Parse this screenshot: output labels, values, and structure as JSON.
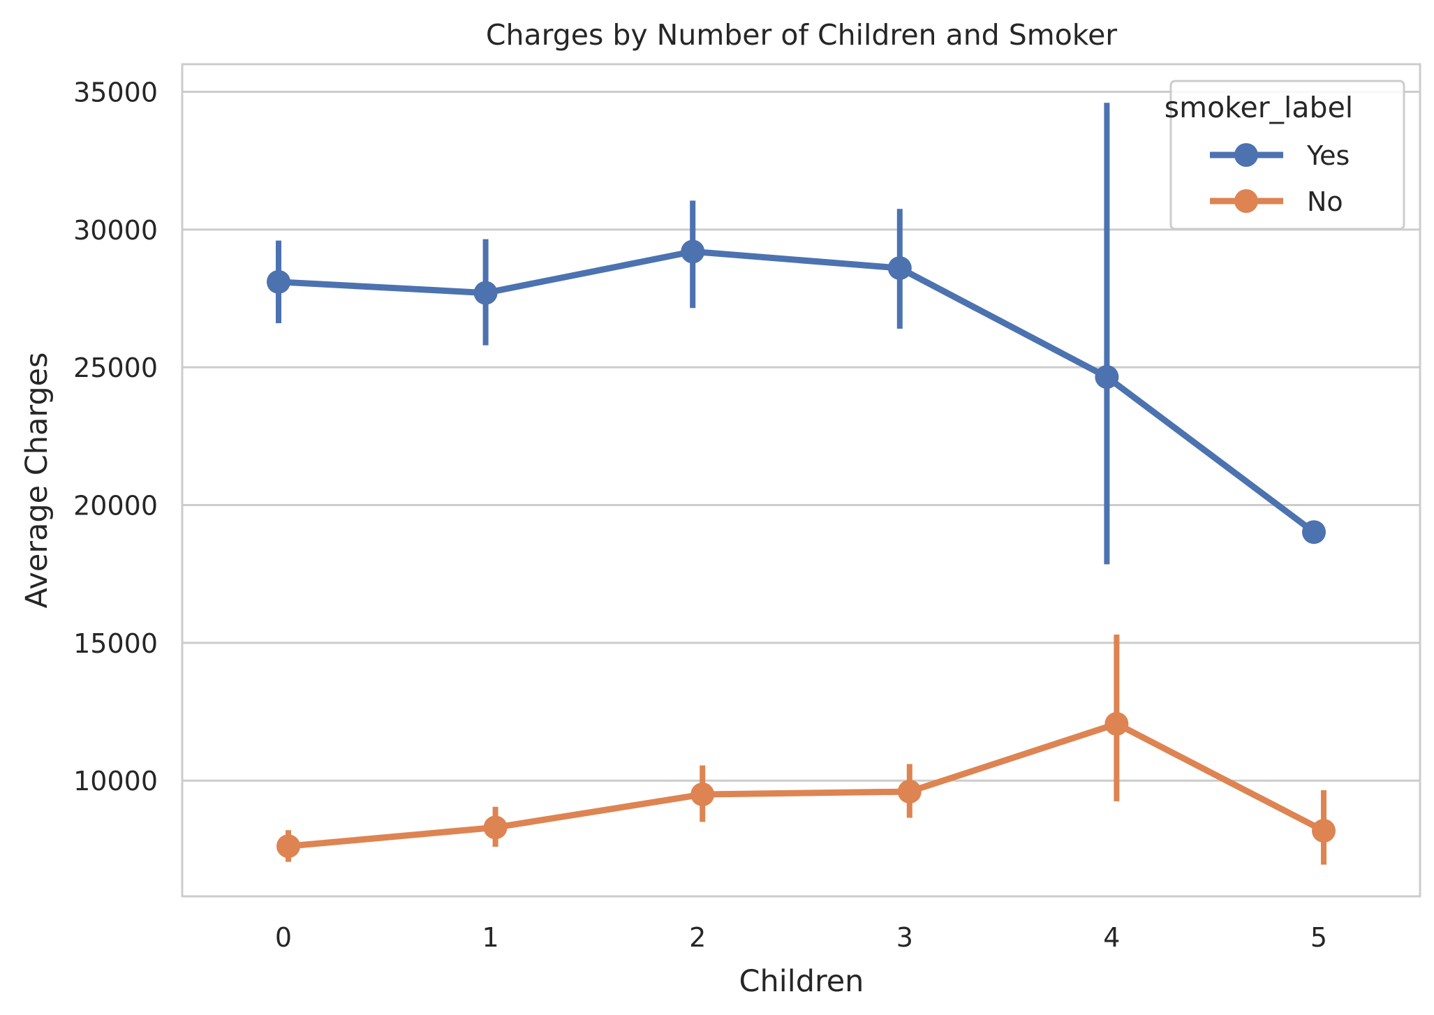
{
  "chart_data": {
    "type": "line",
    "title": "Charges by Number of Children and Smoker",
    "xlabel": "Children",
    "ylabel": "Average Charges",
    "categories": [
      "0",
      "1",
      "2",
      "3",
      "4",
      "5"
    ],
    "ylim": [
      5800,
      36000
    ],
    "yticks": [
      10000,
      15000,
      20000,
      25000,
      30000,
      35000
    ],
    "ytick_labels": [
      "10000",
      "15000",
      "20000",
      "25000",
      "30000",
      "35000"
    ],
    "grid": "horizontal",
    "legend": {
      "title": "smoker_label",
      "placement": "top-right"
    },
    "series": [
      {
        "name": "Yes",
        "color": "#4c72b0",
        "values": [
          28100,
          27700,
          29200,
          28600,
          24650,
          19020
        ],
        "ci_low": [
          26600,
          25800,
          27150,
          26400,
          17850,
          null
        ],
        "ci_high": [
          29600,
          29650,
          31050,
          30750,
          34600,
          null
        ]
      },
      {
        "name": "No",
        "color": "#dd8452",
        "values": [
          7620,
          8300,
          9500,
          9600,
          12060,
          8180
        ],
        "ci_low": [
          7050,
          7600,
          8500,
          8650,
          9250,
          6950
        ],
        "ci_high": [
          8200,
          9050,
          10550,
          10600,
          15300,
          9650
        ]
      }
    ]
  }
}
